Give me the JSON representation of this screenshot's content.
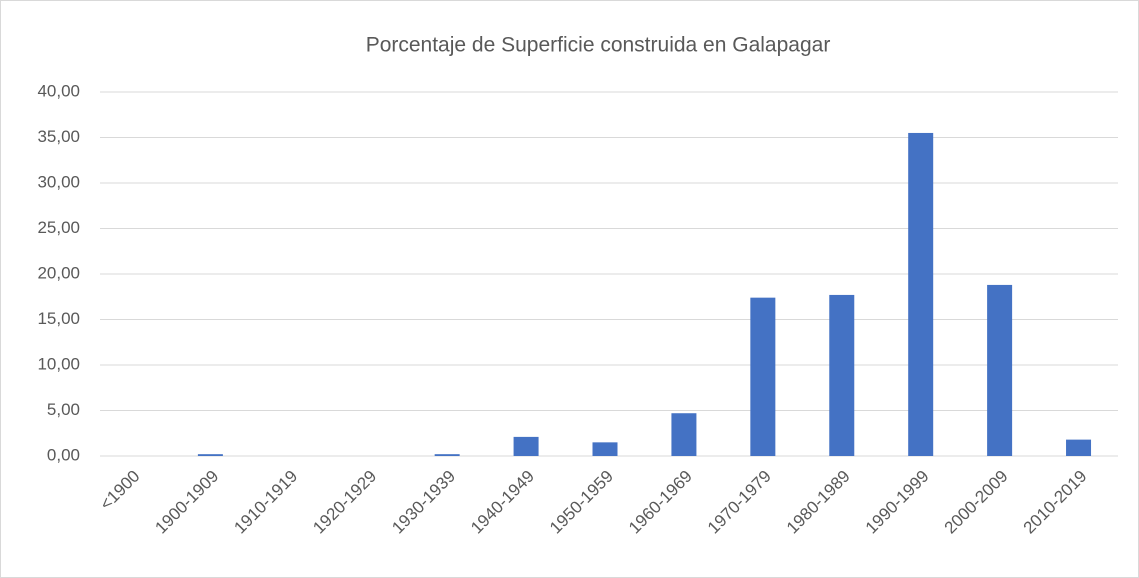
{
  "chart_data": {
    "type": "bar",
    "title": "Porcentaje de Superficie construida en Galapagar",
    "categories": [
      "<1900",
      "1900-1909",
      "1910-1919",
      "1920-1929",
      "1930-1939",
      "1940-1949",
      "1950-1959",
      "1960-1969",
      "1970-1979",
      "1980-1989",
      "1990-1999",
      "2000-2009",
      "2010-2019"
    ],
    "values": [
      0,
      0.2,
      0,
      0,
      0.2,
      2.1,
      1.5,
      4.7,
      17.4,
      17.7,
      35.5,
      18.8,
      1.8
    ],
    "color": "#4472c4",
    "ylim": [
      0,
      40
    ],
    "yticks": [
      {
        "value": 0,
        "label": "0,00"
      },
      {
        "value": 5,
        "label": "5,00"
      },
      {
        "value": 10,
        "label": "10,00"
      },
      {
        "value": 15,
        "label": "15,00"
      },
      {
        "value": 20,
        "label": "20,00"
      },
      {
        "value": 25,
        "label": "25,00"
      },
      {
        "value": 30,
        "label": "30,00"
      },
      {
        "value": 35,
        "label": "35,00"
      },
      {
        "value": 40,
        "label": "40,00"
      }
    ],
    "grid": true
  }
}
